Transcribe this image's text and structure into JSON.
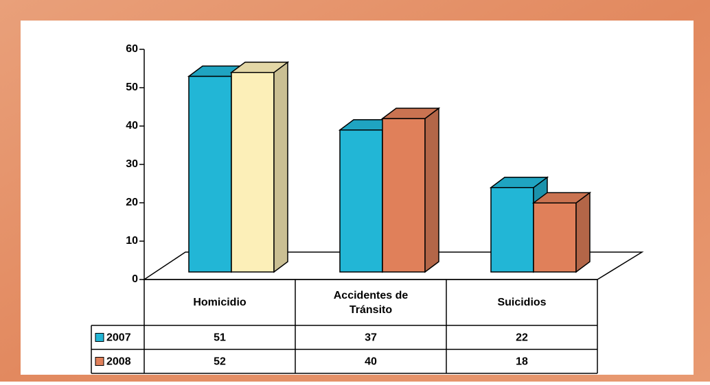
{
  "chart_data": {
    "type": "bar3d",
    "categories": [
      "Homicidio",
      "Accidentes de Tránsito",
      "Suicidios"
    ],
    "series": [
      {
        "name": "2007",
        "color": "#22b6d6",
        "colors": [
          "#22b6d6",
          "#22b6d6",
          "#22b6d6"
        ],
        "values": [
          51,
          37,
          22
        ]
      },
      {
        "name": "2008",
        "color": "#e0805a",
        "colors": [
          "#fcefb8",
          "#e0805a",
          "#e0805a"
        ],
        "values": [
          52,
          40,
          18
        ]
      }
    ],
    "ylim": [
      0,
      60
    ],
    "yticks": [
      0,
      10,
      20,
      30,
      40,
      50,
      60
    ],
    "data_table": true
  }
}
